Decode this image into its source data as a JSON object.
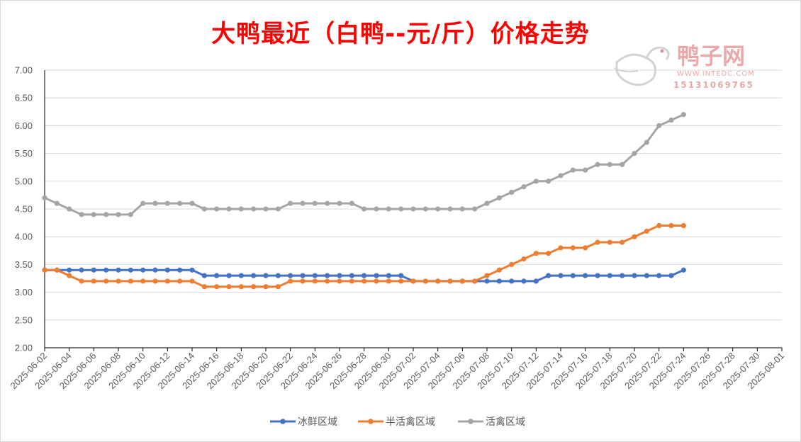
{
  "chart_data": {
    "type": "line",
    "title": "大鸭最近（白鸭--元/斤）价格走势",
    "xlabel": "",
    "ylabel": "",
    "ylim": [
      2.0,
      7.0
    ],
    "y_ticks": [
      "7.00",
      "6.50",
      "6.00",
      "5.50",
      "5.00",
      "4.50",
      "4.00",
      "3.50",
      "3.00",
      "2.50",
      "2.00"
    ],
    "x_range": [
      "2025-06-02",
      "2025-08-01"
    ],
    "x_tick_labels": [
      "2025-06-02",
      "2025-06-04",
      "2025-06-06",
      "2025-06-08",
      "2025-06-10",
      "2025-06-12",
      "2025-06-14",
      "2025-06-16",
      "2025-06-18",
      "2025-06-20",
      "2025-06-22",
      "2025-06-24",
      "2025-06-26",
      "2025-06-28",
      "2025-06-30",
      "2025-07-02",
      "2025-07-04",
      "2025-07-06",
      "2025-07-08",
      "2025-07-10",
      "2025-07-12",
      "2025-07-14",
      "2025-07-16",
      "2025-07-18",
      "2025-07-20",
      "2025-07-22",
      "2025-07-24",
      "2025-07-26",
      "2025-07-28",
      "2025-07-30",
      "2025-08-01"
    ],
    "grid": "horizontal",
    "legend_position": "bottom",
    "x_start_date": "2025-06-02",
    "series": [
      {
        "name": "冰鲜区域",
        "color": "#4472c4",
        "values": [
          3.4,
          3.4,
          3.4,
          3.4,
          3.4,
          3.4,
          3.4,
          3.4,
          3.4,
          3.4,
          3.4,
          3.4,
          3.4,
          3.3,
          3.3,
          3.3,
          3.3,
          3.3,
          3.3,
          3.3,
          3.3,
          3.3,
          3.3,
          3.3,
          3.3,
          3.3,
          3.3,
          3.3,
          3.3,
          3.3,
          3.2,
          3.2,
          3.2,
          3.2,
          3.2,
          3.2,
          3.2,
          3.2,
          3.2,
          3.2,
          3.2,
          3.3,
          3.3,
          3.3,
          3.3,
          3.3,
          3.3,
          3.3,
          3.3,
          3.3,
          3.3,
          3.3,
          3.4
        ]
      },
      {
        "name": "半活禽区域",
        "color": "#ed7d31",
        "values": [
          3.4,
          3.4,
          3.3,
          3.2,
          3.2,
          3.2,
          3.2,
          3.2,
          3.2,
          3.2,
          3.2,
          3.2,
          3.2,
          3.1,
          3.1,
          3.1,
          3.1,
          3.1,
          3.1,
          3.1,
          3.2,
          3.2,
          3.2,
          3.2,
          3.2,
          3.2,
          3.2,
          3.2,
          3.2,
          3.2,
          3.2,
          3.2,
          3.2,
          3.2,
          3.2,
          3.2,
          3.3,
          3.4,
          3.5,
          3.6,
          3.7,
          3.7,
          3.8,
          3.8,
          3.8,
          3.9,
          3.9,
          3.9,
          4.0,
          4.1,
          4.2,
          4.2,
          4.2
        ]
      },
      {
        "name": "活禽区域",
        "color": "#a5a5a5",
        "values": [
          4.7,
          4.6,
          4.5,
          4.4,
          4.4,
          4.4,
          4.4,
          4.4,
          4.6,
          4.6,
          4.6,
          4.6,
          4.6,
          4.5,
          4.5,
          4.5,
          4.5,
          4.5,
          4.5,
          4.5,
          4.6,
          4.6,
          4.6,
          4.6,
          4.6,
          4.6,
          4.5,
          4.5,
          4.5,
          4.5,
          4.5,
          4.5,
          4.5,
          4.5,
          4.5,
          4.5,
          4.6,
          4.7,
          4.8,
          4.9,
          5.0,
          5.0,
          5.1,
          5.2,
          5.2,
          5.3,
          5.3,
          5.3,
          5.5,
          5.7,
          6.0,
          6.1,
          6.2
        ]
      }
    ]
  },
  "watermark": {
    "brand": "鸭子网",
    "url": "WWW.INTEDC.COM",
    "phone": "15131069765",
    "color": "#e8a0a0"
  }
}
